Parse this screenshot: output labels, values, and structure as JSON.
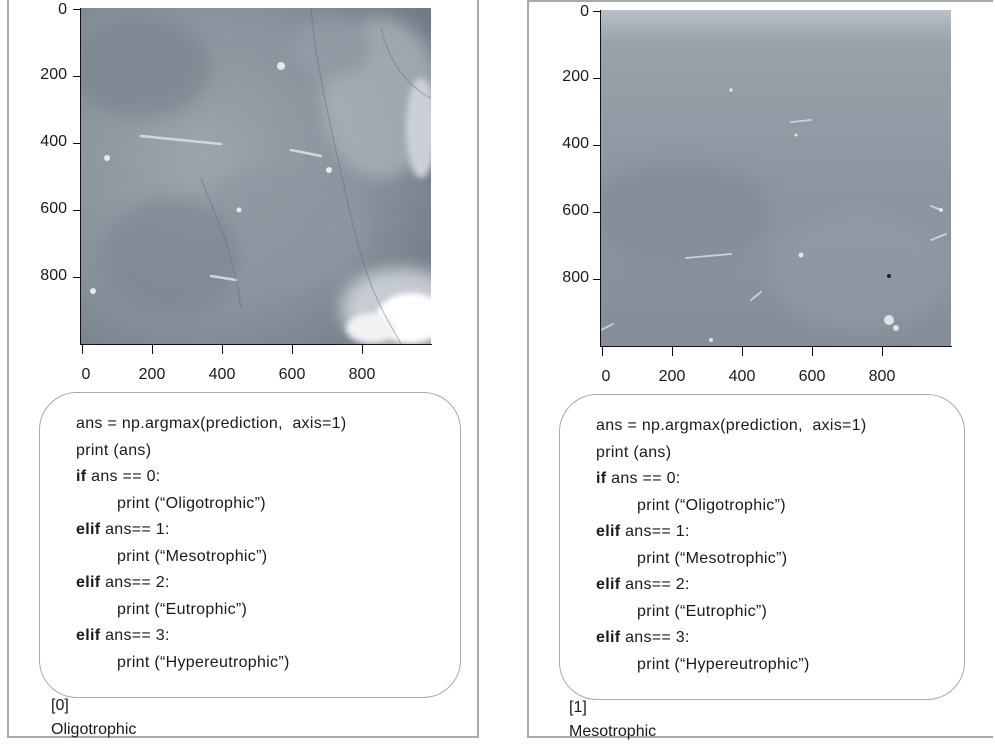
{
  "panels": [
    {
      "y_ticks": [
        "0",
        "200",
        "400",
        "600",
        "800"
      ],
      "x_ticks": [
        "0",
        "200",
        "400",
        "600",
        "800"
      ],
      "image": "lake water sample photo (grayscale, blurry texture)",
      "code": [
        {
          "kw": "",
          "text": "ans = np.argmax(prediction,  axis=1)",
          "indent": false
        },
        {
          "kw": "",
          "text": "print (ans)",
          "indent": false
        },
        {
          "kw": "if",
          "text": " ans == 0:",
          "indent": false
        },
        {
          "kw": "",
          "text": "print (“Oligotrophic”)",
          "indent": true
        },
        {
          "kw": "elif",
          "text": " ans== 1:",
          "indent": false
        },
        {
          "kw": "",
          "text": "print (“Mesotrophic”)",
          "indent": true
        },
        {
          "kw": "elif",
          "text": " ans== 2:",
          "indent": false
        },
        {
          "kw": "",
          "text": "print (“Eutrophic”)",
          "indent": true
        },
        {
          "kw": "elif",
          "text": " ans== 3:",
          "indent": false
        },
        {
          "kw": "",
          "text": "print (“Hypereutrophic”)",
          "indent": true
        }
      ],
      "output": [
        "[0]",
        "Oligotrophic"
      ]
    },
    {
      "y_ticks": [
        "0",
        "200",
        "400",
        "600",
        "800"
      ],
      "x_ticks": [
        "0",
        "200",
        "400",
        "600",
        "800"
      ],
      "image": "lake water sample photo (grayscale, smooth gradient)",
      "code": [
        {
          "kw": "",
          "text": "ans = np.argmax(prediction,  axis=1)",
          "indent": false
        },
        {
          "kw": "",
          "text": "print (ans)",
          "indent": false
        },
        {
          "kw": "if",
          "text": " ans == 0:",
          "indent": false
        },
        {
          "kw": "",
          "text": "print (“Oligotrophic”)",
          "indent": true
        },
        {
          "kw": "elif",
          "text": " ans== 1:",
          "indent": false
        },
        {
          "kw": "",
          "text": "print (“Mesotrophic”)",
          "indent": true
        },
        {
          "kw": "elif",
          "text": " ans== 2:",
          "indent": false
        },
        {
          "kw": "",
          "text": "print (“Eutrophic”)",
          "indent": true
        },
        {
          "kw": "elif",
          "text": " ans== 3:",
          "indent": false
        },
        {
          "kw": "",
          "text": "print (“Hypereutrophic”)",
          "indent": true
        }
      ],
      "output": [
        "[1]",
        "Mesotrophic"
      ]
    }
  ]
}
